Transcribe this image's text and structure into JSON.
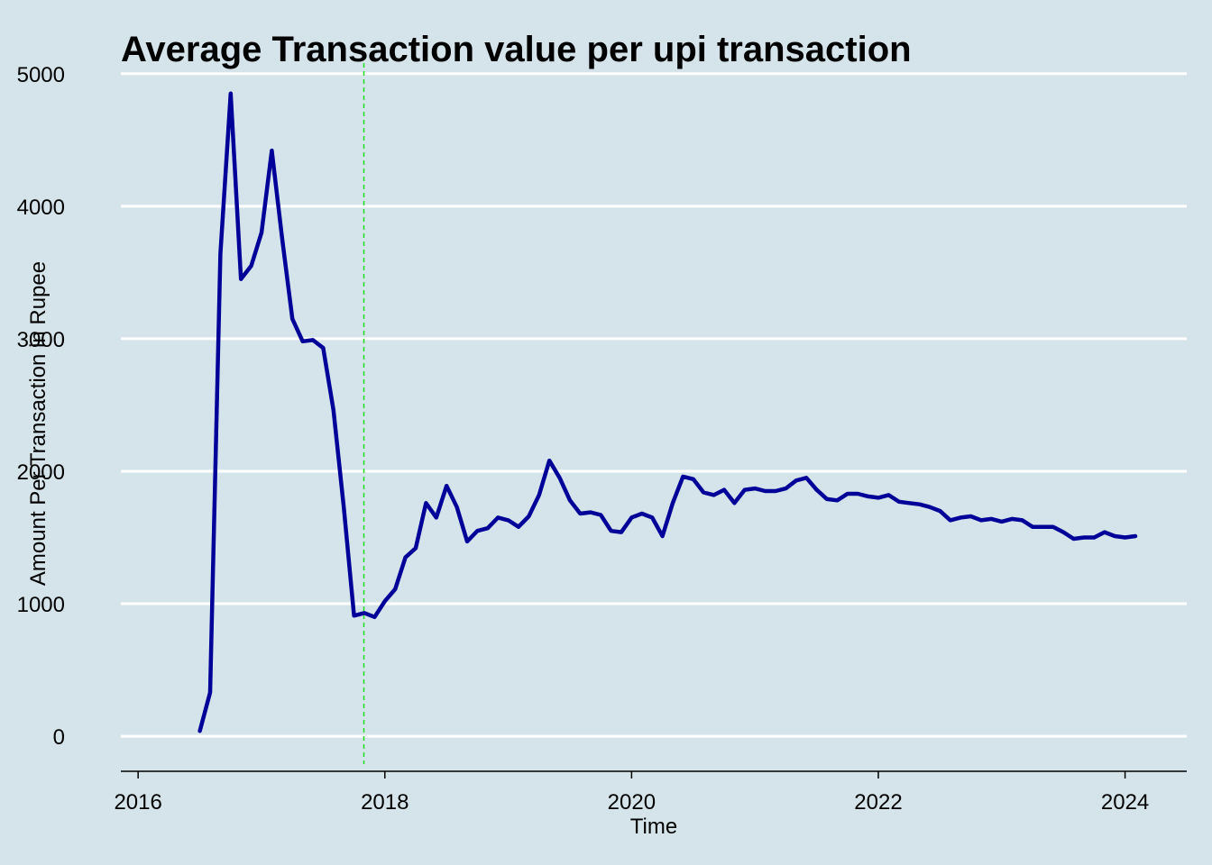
{
  "chart_data": {
    "type": "line",
    "title": "Average Transaction value per upi transaction",
    "xlabel": "Time",
    "ylabel": "Amount Per Transaction in Rupee",
    "xlim": [
      2015.86,
      2024.5
    ],
    "ylim": [
      -210,
      5080
    ],
    "xticks": [
      2016,
      2018,
      2020,
      2022,
      2024
    ],
    "xtick_labels": [
      "2016",
      "2018",
      "2020",
      "2022",
      "2024"
    ],
    "yticks": [
      0,
      1000,
      2000,
      3000,
      4000,
      5000
    ],
    "ytick_labels": [
      "0",
      "1000",
      "2000",
      "3000",
      "4000",
      "5000"
    ],
    "grid": "horizontal",
    "reference_line": {
      "x": 2017.83,
      "style": "dashed",
      "color": "#22dd22"
    },
    "series": [
      {
        "color": "#000099",
        "x_start": 2016.5,
        "x_step_months": 1,
        "values": [
          40,
          330,
          3640,
          4850,
          3450,
          3550,
          3800,
          4420,
          3760,
          3150,
          2980,
          2990,
          2930,
          2460,
          1730,
          910,
          930,
          900,
          1020,
          1110,
          1350,
          1420,
          1760,
          1650,
          1890,
          1730,
          1470,
          1550,
          1570,
          1650,
          1630,
          1580,
          1660,
          1820,
          2080,
          1950,
          1780,
          1680,
          1690,
          1670,
          1550,
          1540,
          1650,
          1680,
          1650,
          1510,
          1760,
          1960,
          1940,
          1840,
          1820,
          1860,
          1760,
          1860,
          1870,
          1850,
          1850,
          1870,
          1930,
          1950,
          1860,
          1790,
          1780,
          1830,
          1830,
          1810,
          1800,
          1820,
          1770,
          1760,
          1750,
          1730,
          1700,
          1630,
          1650,
          1660,
          1630,
          1640,
          1620,
          1640,
          1630,
          1580,
          1580,
          1580,
          1540,
          1490,
          1500,
          1500,
          1540,
          1510,
          1500,
          1510
        ]
      }
    ]
  }
}
